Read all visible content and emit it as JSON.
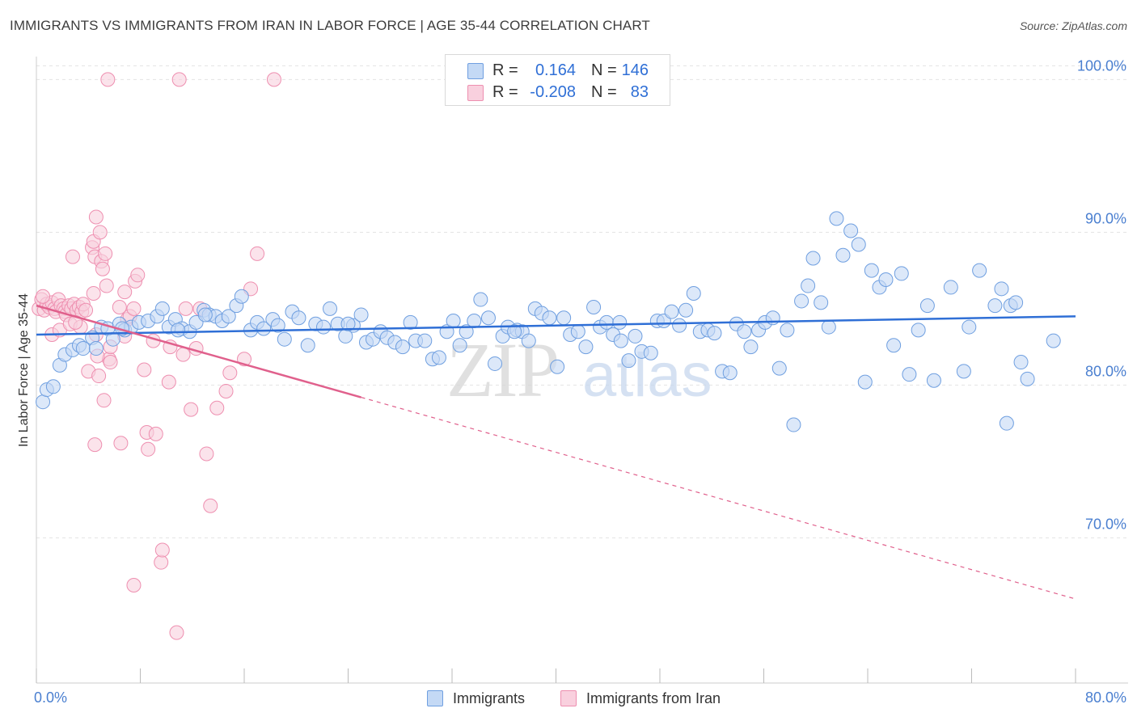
{
  "title": "IMMIGRANTS VS IMMIGRANTS FROM IRAN IN LABOR FORCE | AGE 35-44 CORRELATION CHART",
  "source": "Source: ZipAtlas.com",
  "watermark": {
    "part1": "ZIP",
    "part2": "atlas"
  },
  "colors": {
    "blue": "#6f9fe0",
    "blue_fill": "#c4d9f5",
    "blue_line": "#2f6fd6",
    "pink": "#ee8fb0",
    "pink_fill": "#f9d0de",
    "pink_line": "#e0608c",
    "tick": "#4a7fd0"
  },
  "legend": {
    "rows": [
      {
        "r_label": "R =",
        "r_value": "0.164",
        "n_label": "N =",
        "n_value": "146"
      },
      {
        "r_label": "R =",
        "r_value": "-0.208",
        "n_label": "N =",
        "n_value": "83"
      }
    ]
  },
  "bottom_legend": {
    "series1": "Immigrants",
    "series2": "Immigrants from Iran"
  },
  "chart_data": {
    "type": "scatter",
    "title": "IMMIGRANTS VS IMMIGRANTS FROM IRAN IN LABOR FORCE | AGE 35-44 CORRELATION CHART",
    "xlabel": "",
    "ylabel": "In Labor Force | Age 35-44",
    "xlim": [
      0,
      80
    ],
    "ylim": [
      60.5,
      101.5
    ],
    "x_tick_labels": [
      "0.0%",
      "80.0%"
    ],
    "y_ticks": [
      70,
      80,
      90,
      100
    ],
    "y_tick_labels": [
      "70.0%",
      "80.0%",
      "90.0%",
      "100.0%"
    ],
    "grid": true,
    "series": [
      {
        "name": "Immigrants",
        "r": 0.164,
        "n": 146,
        "trend": {
          "x": [
            0,
            80
          ],
          "y": [
            83.3,
            84.5
          ],
          "dashed_from": null
        },
        "points": [
          [
            0.5,
            78.9
          ],
          [
            0.8,
            79.7
          ],
          [
            1.3,
            79.9
          ],
          [
            1.8,
            81.3
          ],
          [
            2.2,
            82.0
          ],
          [
            2.8,
            82.3
          ],
          [
            3.3,
            82.6
          ],
          [
            3.6,
            82.4
          ],
          [
            4.3,
            83.1
          ],
          [
            5.0,
            83.8
          ],
          [
            5.5,
            83.7
          ],
          [
            5.9,
            83.0
          ],
          [
            6.4,
            84.0
          ],
          [
            6.8,
            83.6
          ],
          [
            7.3,
            83.8
          ],
          [
            7.9,
            84.1
          ],
          [
            8.6,
            84.2
          ],
          [
            9.3,
            84.5
          ],
          [
            9.7,
            85.0
          ],
          [
            10.2,
            83.8
          ],
          [
            10.7,
            84.3
          ],
          [
            11.2,
            83.7
          ],
          [
            11.8,
            83.5
          ],
          [
            12.3,
            84.1
          ],
          [
            12.9,
            84.9
          ],
          [
            13.3,
            84.6
          ],
          [
            13.8,
            84.5
          ],
          [
            14.3,
            84.2
          ],
          [
            14.8,
            84.5
          ],
          [
            15.4,
            85.2
          ],
          [
            15.8,
            85.8
          ],
          [
            16.5,
            83.6
          ],
          [
            17.0,
            84.1
          ],
          [
            17.5,
            83.7
          ],
          [
            18.2,
            84.3
          ],
          [
            18.6,
            83.9
          ],
          [
            19.1,
            83.0
          ],
          [
            19.7,
            84.8
          ],
          [
            20.2,
            84.4
          ],
          [
            20.9,
            82.6
          ],
          [
            21.5,
            84.0
          ],
          [
            22.1,
            83.8
          ],
          [
            22.6,
            85.0
          ],
          [
            23.2,
            84.0
          ],
          [
            23.8,
            83.2
          ],
          [
            24.4,
            83.9
          ],
          [
            25.0,
            84.6
          ],
          [
            25.4,
            82.8
          ],
          [
            25.9,
            83.0
          ],
          [
            26.5,
            83.5
          ],
          [
            27.0,
            83.1
          ],
          [
            27.6,
            82.8
          ],
          [
            28.2,
            82.5
          ],
          [
            28.8,
            84.1
          ],
          [
            29.2,
            82.9
          ],
          [
            29.9,
            82.9
          ],
          [
            30.5,
            81.7
          ],
          [
            31.0,
            81.8
          ],
          [
            31.6,
            83.5
          ],
          [
            32.1,
            84.2
          ],
          [
            32.6,
            82.6
          ],
          [
            33.1,
            83.5
          ],
          [
            33.7,
            84.2
          ],
          [
            34.2,
            85.6
          ],
          [
            34.8,
            84.4
          ],
          [
            35.3,
            81.4
          ],
          [
            35.9,
            83.2
          ],
          [
            36.3,
            83.8
          ],
          [
            37.0,
            83.6
          ],
          [
            37.4,
            83.5
          ],
          [
            37.9,
            82.9
          ],
          [
            38.4,
            85.0
          ],
          [
            38.9,
            84.7
          ],
          [
            39.5,
            84.4
          ],
          [
            40.1,
            81.2
          ],
          [
            40.6,
            84.4
          ],
          [
            41.1,
            83.3
          ],
          [
            41.7,
            83.5
          ],
          [
            42.3,
            82.5
          ],
          [
            42.9,
            85.1
          ],
          [
            43.4,
            83.8
          ],
          [
            43.9,
            84.1
          ],
          [
            44.4,
            83.3
          ],
          [
            45.0,
            82.9
          ],
          [
            45.6,
            81.6
          ],
          [
            46.1,
            83.2
          ],
          [
            46.6,
            82.2
          ],
          [
            47.3,
            82.1
          ],
          [
            47.8,
            84.2
          ],
          [
            48.3,
            84.2
          ],
          [
            48.9,
            84.8
          ],
          [
            49.5,
            83.9
          ],
          [
            50.0,
            84.9
          ],
          [
            50.6,
            86.0
          ],
          [
            51.1,
            83.5
          ],
          [
            51.7,
            83.6
          ],
          [
            52.2,
            83.4
          ],
          [
            52.8,
            80.9
          ],
          [
            53.4,
            80.8
          ],
          [
            53.9,
            84.0
          ],
          [
            54.5,
            83.5
          ],
          [
            55.0,
            82.5
          ],
          [
            55.6,
            83.6
          ],
          [
            56.1,
            84.1
          ],
          [
            56.7,
            84.4
          ],
          [
            57.2,
            81.1
          ],
          [
            57.8,
            83.6
          ],
          [
            58.3,
            77.4
          ],
          [
            58.9,
            85.5
          ],
          [
            59.4,
            86.5
          ],
          [
            59.8,
            88.3
          ],
          [
            60.4,
            85.4
          ],
          [
            61.0,
            83.8
          ],
          [
            61.6,
            90.9
          ],
          [
            62.1,
            88.5
          ],
          [
            62.7,
            90.1
          ],
          [
            63.3,
            89.2
          ],
          [
            63.8,
            80.2
          ],
          [
            64.3,
            87.5
          ],
          [
            64.9,
            86.4
          ],
          [
            65.4,
            86.9
          ],
          [
            66.0,
            82.6
          ],
          [
            66.6,
            87.3
          ],
          [
            67.2,
            80.7
          ],
          [
            67.9,
            83.6
          ],
          [
            68.6,
            85.2
          ],
          [
            69.1,
            80.3
          ],
          [
            70.4,
            86.4
          ],
          [
            71.4,
            80.9
          ],
          [
            71.8,
            83.8
          ],
          [
            72.6,
            87.5
          ],
          [
            73.8,
            85.2
          ],
          [
            74.3,
            86.3
          ],
          [
            74.7,
            77.5
          ],
          [
            75.0,
            85.2
          ],
          [
            75.4,
            85.4
          ],
          [
            75.8,
            81.5
          ],
          [
            76.3,
            80.4
          ],
          [
            78.3,
            82.9
          ],
          [
            4.6,
            82.4
          ],
          [
            6.6,
            83.7
          ],
          [
            10.9,
            83.6
          ],
          [
            13.0,
            84.6
          ],
          [
            24.0,
            84.0
          ],
          [
            36.8,
            83.5
          ],
          [
            44.9,
            84.1
          ]
        ]
      },
      {
        "name": "Immigrants from Iran",
        "r": -0.208,
        "n": 83,
        "trend": {
          "x": [
            0,
            25,
            80
          ],
          "y": [
            85.2,
            79.2,
            66.0
          ],
          "dashed_from": 25
        },
        "points": [
          [
            0.2,
            85.0
          ],
          [
            0.4,
            85.6
          ],
          [
            0.6,
            84.9
          ],
          [
            0.8,
            85.3
          ],
          [
            1.0,
            85.1
          ],
          [
            1.2,
            85.4
          ],
          [
            1.4,
            85.0
          ],
          [
            1.5,
            84.8
          ],
          [
            1.7,
            85.6
          ],
          [
            1.9,
            85.2
          ],
          [
            2.1,
            85.0
          ],
          [
            2.2,
            84.8
          ],
          [
            2.3,
            84.6
          ],
          [
            2.5,
            85.2
          ],
          [
            2.7,
            85.0
          ],
          [
            2.9,
            85.3
          ],
          [
            3.1,
            84.9
          ],
          [
            3.3,
            85.1
          ],
          [
            3.5,
            84.8
          ],
          [
            3.6,
            85.3
          ],
          [
            1.2,
            83.3
          ],
          [
            1.8,
            83.6
          ],
          [
            2.6,
            84.0
          ],
          [
            3.4,
            83.8
          ],
          [
            2.8,
            88.4
          ],
          [
            3.0,
            84.1
          ],
          [
            3.8,
            84.9
          ],
          [
            4.0,
            80.9
          ],
          [
            4.4,
            86.0
          ],
          [
            4.6,
            83.3
          ],
          [
            4.8,
            80.6
          ],
          [
            4.3,
            89.0
          ],
          [
            4.4,
            89.4
          ],
          [
            4.5,
            88.4
          ],
          [
            4.6,
            91.0
          ],
          [
            4.9,
            90.0
          ],
          [
            5.0,
            88.1
          ],
          [
            5.1,
            87.6
          ],
          [
            5.3,
            88.6
          ],
          [
            5.4,
            86.5
          ],
          [
            5.6,
            81.7
          ],
          [
            5.7,
            82.5
          ],
          [
            4.5,
            76.1
          ],
          [
            4.7,
            81.9
          ],
          [
            5.2,
            79.0
          ],
          [
            5.7,
            81.5
          ],
          [
            6.4,
            85.1
          ],
          [
            6.8,
            83.2
          ],
          [
            6.5,
            76.2
          ],
          [
            6.8,
            86.1
          ],
          [
            7.0,
            84.3
          ],
          [
            7.2,
            84.5
          ],
          [
            7.5,
            85.0
          ],
          [
            7.6,
            86.8
          ],
          [
            7.8,
            87.2
          ],
          [
            7.5,
            66.9
          ],
          [
            8.3,
            81.0
          ],
          [
            8.5,
            76.9
          ],
          [
            8.6,
            75.8
          ],
          [
            9.0,
            82.9
          ],
          [
            9.2,
            76.8
          ],
          [
            9.6,
            68.4
          ],
          [
            9.7,
            69.2
          ],
          [
            10.2,
            80.2
          ],
          [
            10.3,
            82.5
          ],
          [
            10.8,
            63.8
          ],
          [
            11.0,
            100.0
          ],
          [
            11.3,
            82.0
          ],
          [
            11.5,
            85.0
          ],
          [
            11.9,
            78.4
          ],
          [
            12.3,
            82.4
          ],
          [
            12.6,
            85.0
          ],
          [
            13.1,
            75.5
          ],
          [
            13.4,
            72.1
          ],
          [
            13.9,
            78.5
          ],
          [
            14.6,
            79.6
          ],
          [
            14.9,
            80.8
          ],
          [
            16.0,
            81.7
          ],
          [
            16.5,
            86.3
          ],
          [
            17.0,
            88.6
          ],
          [
            5.5,
            100.0
          ],
          [
            18.3,
            100.0
          ],
          [
            0.5,
            85.8
          ]
        ]
      }
    ]
  }
}
